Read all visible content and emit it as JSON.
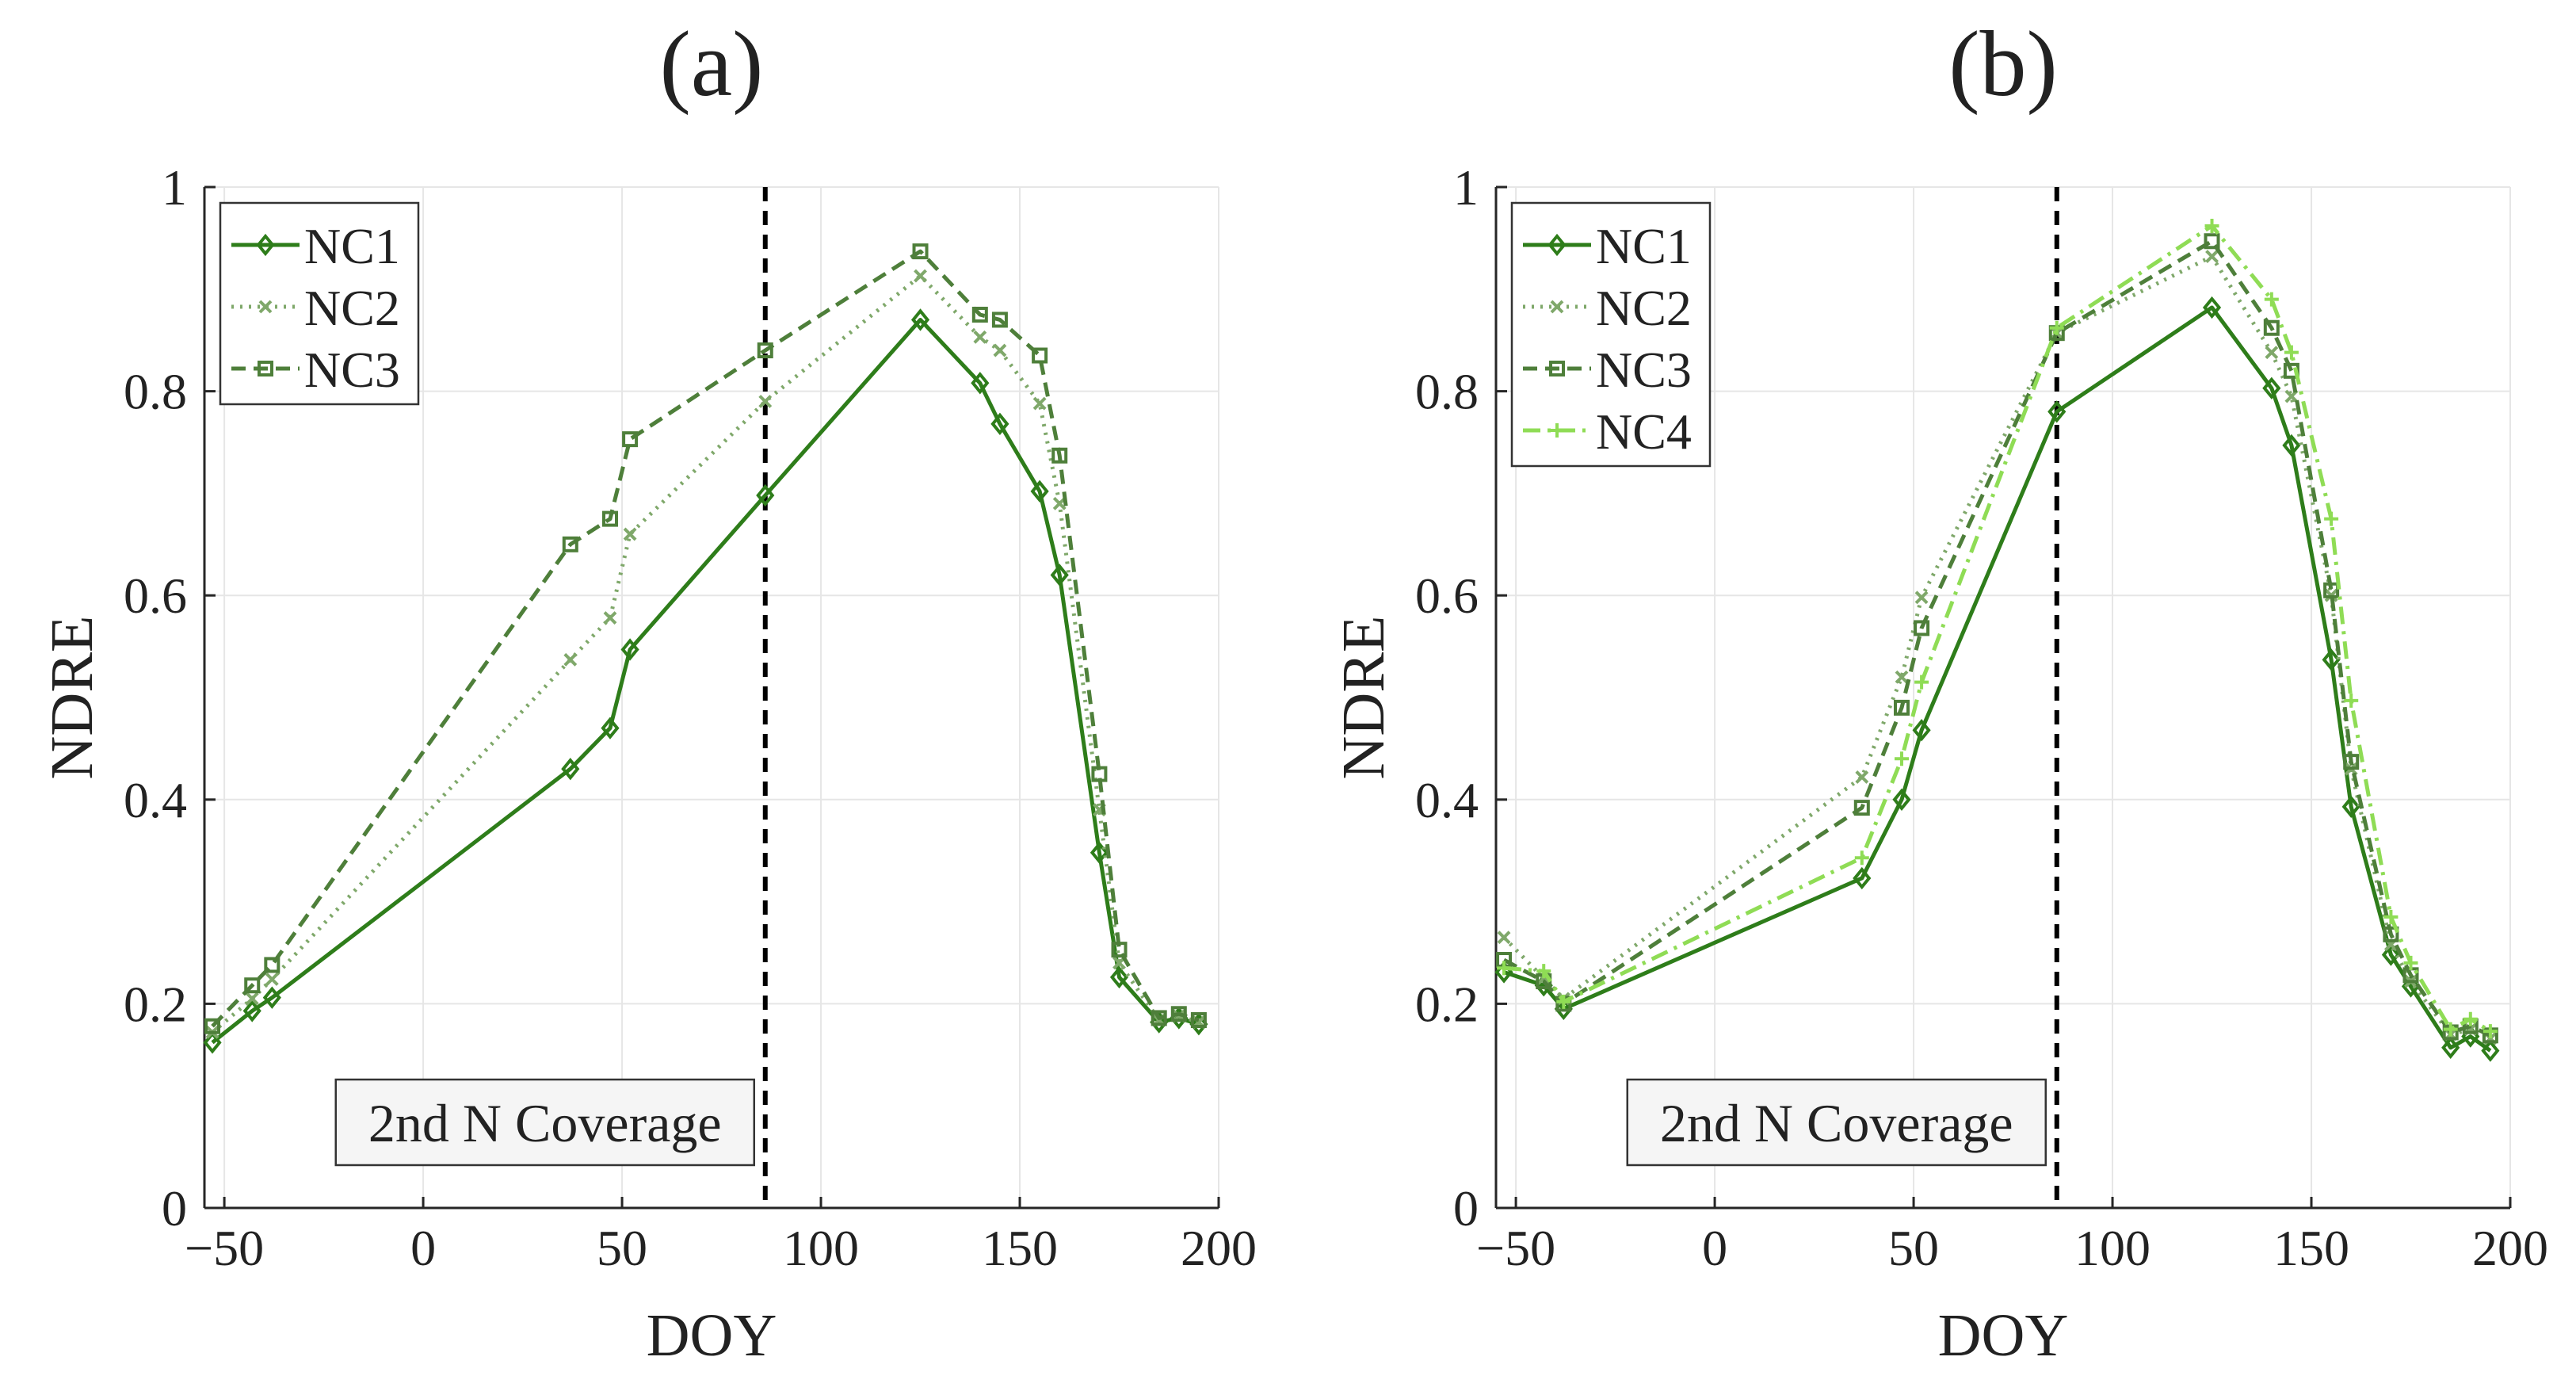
{
  "chart_data": [
    {
      "type": "line",
      "panel_label": "(a)",
      "xlabel": "DOY",
      "ylabel": "NDRE",
      "xlim": [
        -55,
        200
      ],
      "ylim": [
        0,
        1
      ],
      "xticks": [
        -50,
        0,
        50,
        100,
        150,
        200
      ],
      "xtick_labels": [
        "−50",
        "0",
        "50",
        "100",
        "150",
        "200"
      ],
      "yticks": [
        0,
        0.2,
        0.4,
        0.6,
        0.8,
        1
      ],
      "ytick_labels": [
        "0",
        "0.2",
        "0.4",
        "0.6",
        "0.8",
        "1"
      ],
      "grid": true,
      "legend_position": "top-left",
      "vline": {
        "x": 86,
        "style": "dashed",
        "color": "#000000"
      },
      "annotation": "2nd N Coverage",
      "series": [
        {
          "name": "NC1",
          "color": "#2e7d1a",
          "dash": "solid",
          "marker": "diamond",
          "x": [
            -53,
            -43,
            -38,
            37,
            47,
            52,
            86,
            125,
            140,
            145,
            155,
            160,
            170,
            175,
            185,
            190,
            195
          ],
          "y": [
            0.162,
            0.193,
            0.206,
            0.43,
            0.47,
            0.547,
            0.698,
            0.87,
            0.808,
            0.768,
            0.702,
            0.62,
            0.348,
            0.226,
            0.182,
            0.186,
            0.18
          ]
        },
        {
          "name": "NC2",
          "color": "#7fa86a",
          "dash": "dotted",
          "marker": "x",
          "x": [
            -53,
            -43,
            -38,
            37,
            47,
            52,
            86,
            125,
            140,
            145,
            155,
            160,
            170,
            175,
            185,
            190,
            195
          ],
          "y": [
            0.172,
            0.205,
            0.224,
            0.537,
            0.578,
            0.66,
            0.79,
            0.913,
            0.853,
            0.84,
            0.788,
            0.69,
            0.39,
            0.24,
            0.184,
            0.188,
            0.182
          ]
        },
        {
          "name": "NC3",
          "color": "#4e7f3a",
          "dash": "dashed",
          "marker": "square",
          "x": [
            -53,
            -43,
            -38,
            37,
            47,
            52,
            86,
            125,
            140,
            145,
            155,
            160,
            170,
            175,
            185,
            190,
            195
          ],
          "y": [
            0.178,
            0.218,
            0.238,
            0.65,
            0.675,
            0.753,
            0.84,
            0.937,
            0.875,
            0.87,
            0.835,
            0.737,
            0.425,
            0.253,
            0.186,
            0.19,
            0.184
          ]
        }
      ]
    },
    {
      "type": "line",
      "panel_label": "(b)",
      "xlabel": "DOY",
      "ylabel": "NDRE",
      "xlim": [
        -55,
        200
      ],
      "ylim": [
        0,
        1
      ],
      "xticks": [
        -50,
        0,
        50,
        100,
        150,
        200
      ],
      "xtick_labels": [
        "−50",
        "0",
        "50",
        "100",
        "150",
        "200"
      ],
      "yticks": [
        0,
        0.2,
        0.4,
        0.6,
        0.8,
        1
      ],
      "ytick_labels": [
        "0",
        "0.2",
        "0.4",
        "0.6",
        "0.8",
        "1"
      ],
      "grid": true,
      "legend_position": "top-left",
      "vline": {
        "x": 86,
        "style": "dashed",
        "color": "#000000"
      },
      "annotation": "2nd N Coverage",
      "series": [
        {
          "name": "NC1",
          "color": "#2e7d1a",
          "dash": "solid",
          "marker": "diamond",
          "x": [
            -53,
            -43,
            -38,
            37,
            47,
            52,
            86,
            125,
            140,
            145,
            155,
            160,
            170,
            175,
            185,
            190,
            195
          ],
          "y": [
            0.231,
            0.218,
            0.195,
            0.323,
            0.4,
            0.468,
            0.78,
            0.882,
            0.803,
            0.747,
            0.537,
            0.393,
            0.248,
            0.217,
            0.157,
            0.168,
            0.154
          ]
        },
        {
          "name": "NC2",
          "color": "#7fa86a",
          "dash": "dotted",
          "marker": "x",
          "x": [
            -53,
            -43,
            -38,
            37,
            47,
            52,
            86,
            125,
            140,
            145,
            155,
            160,
            170,
            175,
            185,
            190,
            195
          ],
          "y": [
            0.265,
            0.225,
            0.205,
            0.422,
            0.52,
            0.598,
            0.857,
            0.932,
            0.838,
            0.795,
            0.6,
            0.43,
            0.258,
            0.222,
            0.17,
            0.175,
            0.166
          ]
        },
        {
          "name": "NC3",
          "color": "#4e7f3a",
          "dash": "dashed",
          "marker": "square",
          "x": [
            -53,
            -43,
            -38,
            37,
            47,
            52,
            86,
            125,
            140,
            145,
            155,
            160,
            170,
            175,
            185,
            190,
            195
          ],
          "y": [
            0.243,
            0.222,
            0.2,
            0.392,
            0.49,
            0.568,
            0.857,
            0.947,
            0.862,
            0.82,
            0.605,
            0.437,
            0.268,
            0.228,
            0.172,
            0.178,
            0.169
          ]
        },
        {
          "name": "NC4",
          "color": "#8fdc55",
          "dash": "dashdot",
          "marker": "plus",
          "x": [
            -53,
            -43,
            -38,
            37,
            47,
            52,
            86,
            125,
            140,
            145,
            155,
            160,
            170,
            175,
            185,
            190,
            195
          ],
          "y": [
            0.235,
            0.232,
            0.202,
            0.343,
            0.44,
            0.515,
            0.862,
            0.962,
            0.89,
            0.838,
            0.675,
            0.497,
            0.285,
            0.24,
            0.175,
            0.185,
            0.173
          ]
        }
      ]
    }
  ]
}
